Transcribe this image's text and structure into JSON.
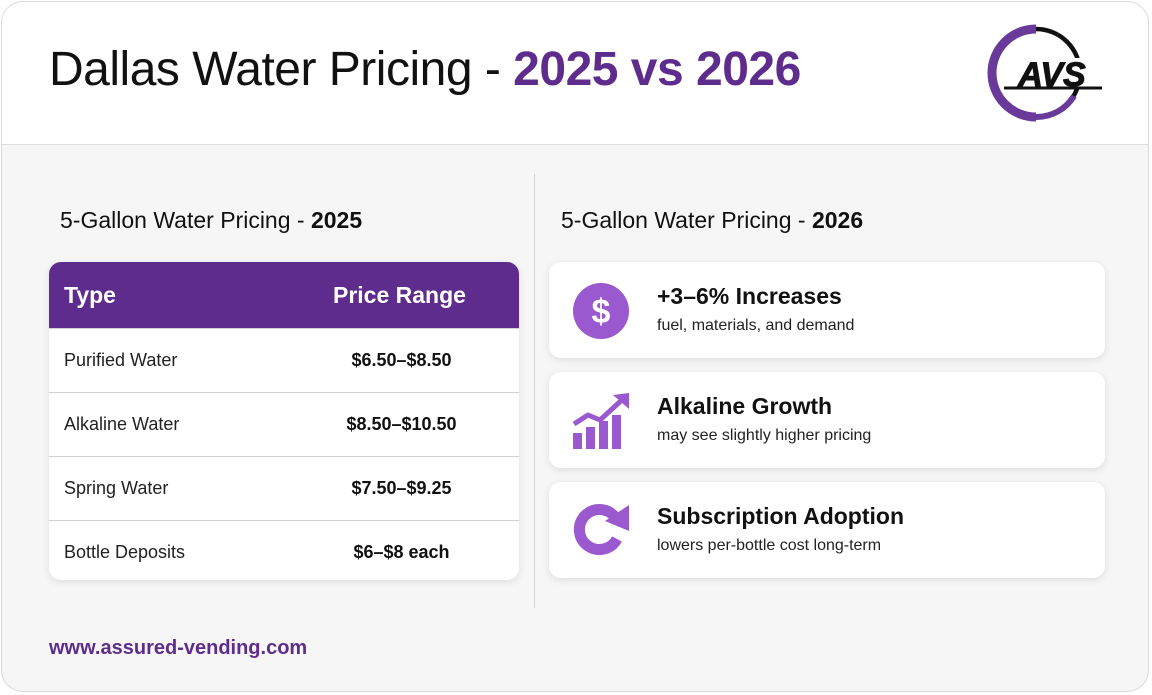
{
  "header": {
    "title_prefix": "Dallas Water Pricing - ",
    "title_accent": "2025 vs 2026",
    "logo_text": "AVS"
  },
  "left": {
    "section_title_prefix": "5-Gallon Water Pricing - ",
    "section_title_year": "2025",
    "table": {
      "headers": [
        "Type",
        "Price Range"
      ],
      "rows": [
        {
          "type": "Purified Water",
          "price": "$6.50–$8.50"
        },
        {
          "type": "Alkaline Water",
          "price": "$8.50–$10.50"
        },
        {
          "type": "Spring Water",
          "price": "$7.50–$9.25"
        },
        {
          "type": "Bottle Deposits",
          "price": "$6–$8 each"
        }
      ]
    }
  },
  "right": {
    "section_title_prefix": "5-Gallon Water Pricing - ",
    "section_title_year": "2026",
    "cards": [
      {
        "icon": "dollar-icon",
        "title": "+3–6% Increases",
        "subtitle": "fuel, materials, and demand"
      },
      {
        "icon": "growth-chart-icon",
        "title": "Alkaline Growth",
        "subtitle": "may see slightly higher pricing"
      },
      {
        "icon": "refresh-icon",
        "title": "Subscription Adoption",
        "subtitle": "lowers per-bottle cost long-term"
      }
    ]
  },
  "footer": {
    "url": "www.assured-vending.com"
  },
  "colors": {
    "accent": "#5e2c8c",
    "icon_purple": "#9b59d0"
  }
}
